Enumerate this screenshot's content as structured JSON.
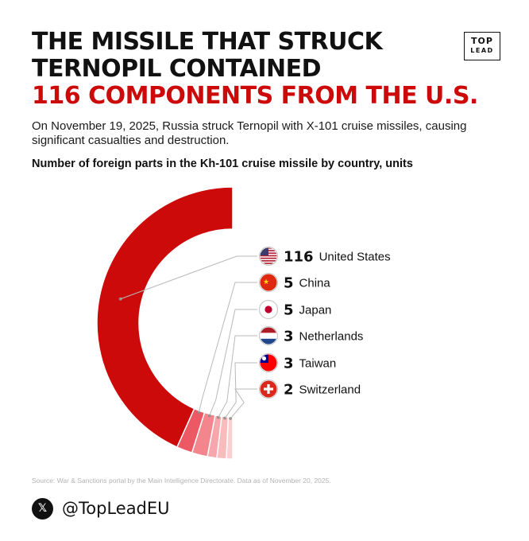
{
  "brand": {
    "logo_top": "TOP",
    "logo_bottom": "LEAD"
  },
  "headline": {
    "line1": "THE MISSILE THAT STRUCK",
    "line2": "TERNOPIL CONTAINED",
    "line3": "116 COMPONENTS FROM THE U.S."
  },
  "subtitle": "On November 19, 2025, Russia struck Ternopil with X-101 cruise missiles, causing significant casualties and destruction.",
  "chart_data": {
    "type": "pie",
    "variant": "half-donut",
    "title": "Number of foreign parts in the Kh-101 cruise missile by country, units",
    "categories": [
      "United States",
      "China",
      "Japan",
      "Netherlands",
      "Taiwan",
      "Switzerland"
    ],
    "values": [
      116,
      5,
      5,
      3,
      3,
      2
    ],
    "colors": [
      "#cc0a0a",
      "#ec5864",
      "#f3858c",
      "#f7a6ab",
      "#fabbbd",
      "#fcd0d1"
    ],
    "icons": [
      "flag-us-icon",
      "flag-china-icon",
      "flag-japan-icon",
      "flag-netherlands-icon",
      "flag-taiwan-icon",
      "flag-switzerland-icon"
    ],
    "legend_position": "right"
  },
  "footer": {
    "source": "Source: War & Sanctions portal by the Main Intelligence Directorate. Data as of November 20, 2025.",
    "handle": "@TopLeadEU",
    "social_icon": "x-logo-icon"
  }
}
